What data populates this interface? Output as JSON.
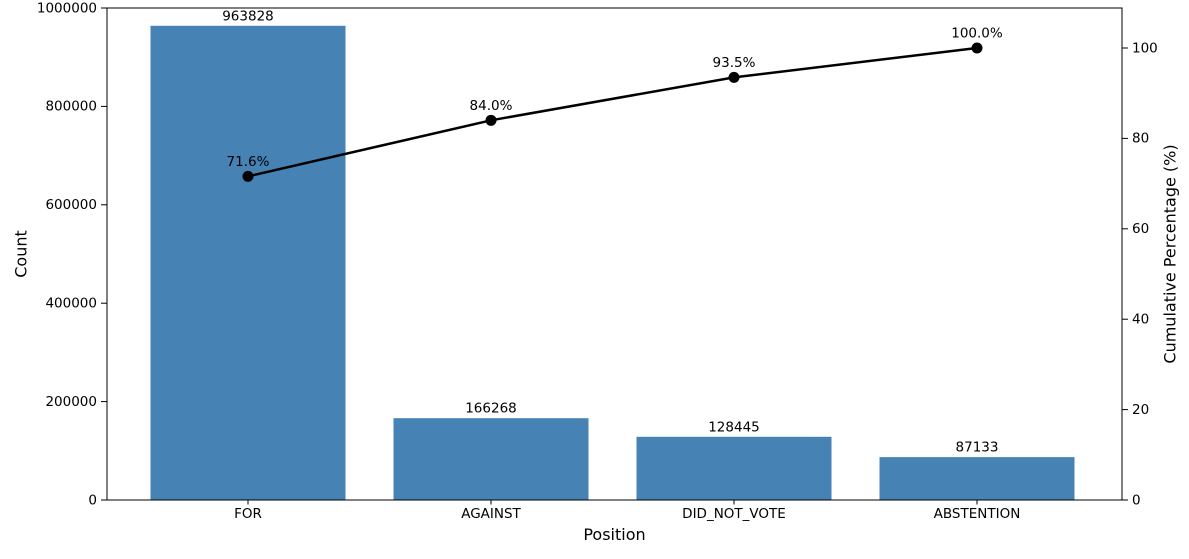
{
  "figure": {
    "background": "#ffffff",
    "title": ""
  },
  "chart_data": {
    "type": "pareto",
    "subtype": "bar+line",
    "title": "",
    "xlabel": "Position",
    "ylabel_left": "Count",
    "ylabel_right": "Cumulative Percentage (%)",
    "categories": [
      "FOR",
      "AGAINST",
      "DID_NOT_VOTE",
      "ABSTENTION"
    ],
    "series": [
      {
        "name": "Count",
        "type": "bar",
        "axis": "left",
        "values": [
          963828,
          166268,
          128445,
          87133
        ],
        "labels": [
          "963828",
          "166268",
          "128445",
          "87133"
        ],
        "color": "#4682b4"
      },
      {
        "name": "Cumulative Percentage",
        "type": "line",
        "axis": "right",
        "values": [
          71.6,
          84.0,
          93.5,
          100.0
        ],
        "labels": [
          "71.6%",
          "84.0%",
          "93.5%",
          "100.0%"
        ],
        "color": "#000000"
      }
    ],
    "axes": {
      "left": {
        "min": 0,
        "max": 1000000,
        "ticks": [
          0,
          200000,
          400000,
          600000,
          800000,
          1000000
        ],
        "tick_labels": [
          "0",
          "200000",
          "400000",
          "600000",
          "800000",
          "1000000"
        ]
      },
      "right": {
        "min": 0,
        "max": 108.85,
        "ticks": [
          0,
          20,
          40,
          60,
          80,
          100
        ],
        "tick_labels": [
          "0",
          "20",
          "40",
          "60",
          "80",
          "100"
        ]
      }
    },
    "grid": false,
    "legend": false,
    "text_color": "#000000",
    "spine_color": "#000000"
  }
}
